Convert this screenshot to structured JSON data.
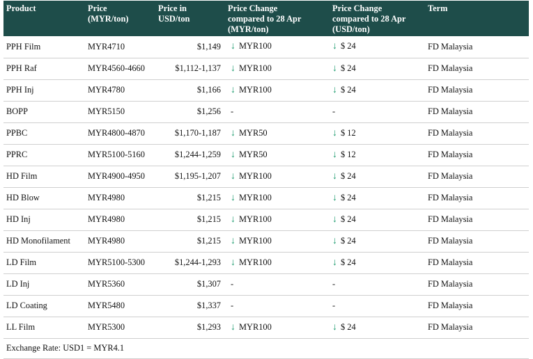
{
  "table": {
    "headers": {
      "product": "Product",
      "price_myr": [
        "Price",
        "(MYR/ton)"
      ],
      "price_usd": [
        "Price in",
        "USD/ton"
      ],
      "chg_myr": [
        "Price Change",
        "compared to 28 Apr",
        "(MYR/ton)"
      ],
      "chg_usd": [
        "Price Change",
        "compared to 28 Apr",
        "(USD/ton)"
      ],
      "term": "Term"
    },
    "rows": [
      {
        "product": "PPH Film",
        "myr": "MYR4710",
        "usd": "$1,149",
        "chg_myr": "MYR100",
        "chg_usd": "$ 24",
        "dir": "down",
        "term": "FD Malaysia"
      },
      {
        "product": "PPH Raf",
        "myr": "MYR4560-4660",
        "usd": "$1,112-1,137",
        "chg_myr": "MYR100",
        "chg_usd": "$ 24",
        "dir": "down",
        "term": "FD Malaysia"
      },
      {
        "product": "PPH Inj",
        "myr": "MYR4780",
        "usd": "$1,166",
        "chg_myr": "MYR100",
        "chg_usd": "$ 24",
        "dir": "down",
        "term": "FD Malaysia"
      },
      {
        "product": "BOPP",
        "myr": "MYR5150",
        "usd": "$1,256",
        "chg_myr": "-",
        "chg_usd": "-",
        "dir": "none",
        "term": "FD Malaysia"
      },
      {
        "product": "PPBC",
        "myr": "MYR4800-4870",
        "usd": "$1,170-1,187",
        "chg_myr": "MYR50",
        "chg_usd": "$ 12",
        "dir": "down",
        "term": "FD Malaysia"
      },
      {
        "product": "PPRC",
        "myr": "MYR5100-5160",
        "usd": "$1,244-1,259",
        "chg_myr": "MYR50",
        "chg_usd": "$ 12",
        "dir": "down",
        "term": "FD Malaysia"
      },
      {
        "product": "HD Film",
        "myr": "MYR4900-4950",
        "usd": "$1,195-1,207",
        "chg_myr": "MYR100",
        "chg_usd": "$ 24",
        "dir": "down",
        "term": "FD Malaysia"
      },
      {
        "product": "HD Blow",
        "myr": "MYR4980",
        "usd": "$1,215",
        "chg_myr": "MYR100",
        "chg_usd": "$ 24",
        "dir": "down",
        "term": "FD Malaysia"
      },
      {
        "product": "HD Inj",
        "myr": "MYR4980",
        "usd": "$1,215",
        "chg_myr": "MYR100",
        "chg_usd": "$ 24",
        "dir": "down",
        "term": "FD Malaysia"
      },
      {
        "product": "HD Monofilament",
        "myr": "MYR4980",
        "usd": "$1,215",
        "chg_myr": "MYR100",
        "chg_usd": "$ 24",
        "dir": "down",
        "term": "FD Malaysia"
      },
      {
        "product": "LD Film",
        "myr": "MYR5100-5300",
        "usd": "$1,244-1,293",
        "chg_myr": "MYR100",
        "chg_usd": "$ 24",
        "dir": "down",
        "term": "FD Malaysia"
      },
      {
        "product": "LD Inj",
        "myr": "MYR5360",
        "usd": "$1,307",
        "chg_myr": "-",
        "chg_usd": "-",
        "dir": "none",
        "term": "FD Malaysia"
      },
      {
        "product": "LD Coating",
        "myr": "MYR5480",
        "usd": "$1,337",
        "chg_myr": "-",
        "chg_usd": "-",
        "dir": "none",
        "term": "FD Malaysia"
      },
      {
        "product": "LL Film",
        "myr": "MYR5300",
        "usd": "$1,293",
        "chg_myr": "MYR100",
        "chg_usd": "$ 24",
        "dir": "down",
        "term": "FD Malaysia"
      }
    ],
    "footer": "Exchange Rate: USD1 = MYR4.1"
  },
  "icons": {
    "decrease": "down-arrow-icon"
  },
  "colors": {
    "header_bg": "#1e4d4a",
    "arrow": "#1a9a6c"
  }
}
